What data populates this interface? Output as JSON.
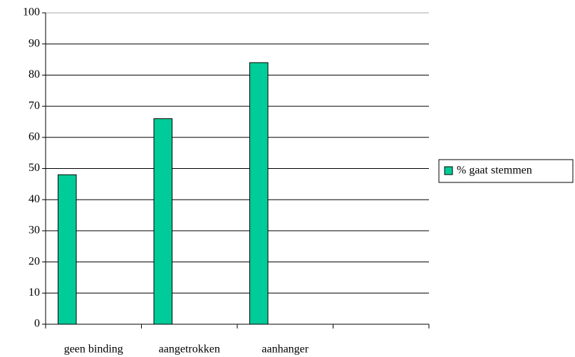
{
  "chart_data": {
    "type": "bar",
    "categories": [
      "geen binding",
      "aangetrokken",
      "aanhanger",
      null
    ],
    "series": [
      {
        "name": "% gaat stemmen",
        "color": "#00cc99",
        "values": [
          48,
          66,
          84,
          null
        ]
      }
    ],
    "ylim": [
      0,
      100
    ],
    "yticks": [
      0,
      10,
      20,
      30,
      40,
      50,
      60,
      70,
      80,
      90,
      100
    ],
    "grid": true,
    "legend": "right"
  }
}
